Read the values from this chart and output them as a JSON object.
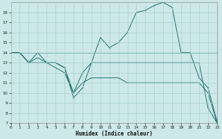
{
  "xlabel": "Humidex (Indice chaleur)",
  "bg_color": "#cce8e8",
  "grid_color": "#aacfcf",
  "line_color": "#1a6b6b",
  "line1_x": [
    0,
    1,
    2,
    3,
    4,
    14,
    18,
    19,
    20,
    21,
    22,
    23
  ],
  "line1_y": [
    14,
    14,
    14,
    14,
    14,
    14,
    14,
    14,
    14,
    14,
    14,
    14
  ],
  "line2_x": [
    0,
    1,
    2,
    3,
    4,
    5,
    6,
    7,
    8,
    9,
    10,
    11,
    12,
    13,
    14,
    15,
    16,
    17,
    18,
    19,
    20,
    21,
    22,
    23
  ],
  "line2_y": [
    14,
    14,
    13,
    14,
    13,
    13,
    12.5,
    9.5,
    10.5,
    13,
    15.5,
    14.5,
    15,
    16,
    18,
    18.2,
    18.7,
    19,
    18.5,
    14,
    14,
    11.5,
    10.5,
    7.2
  ],
  "line3_x": [
    0,
    1,
    2,
    3,
    4,
    5,
    6,
    7,
    8,
    9,
    10,
    11,
    12,
    13,
    14,
    15,
    16,
    17,
    18,
    19,
    20,
    21,
    22,
    23
  ],
  "line3_y": [
    14,
    14,
    13,
    13.5,
    13,
    13,
    12.5,
    10,
    12,
    13,
    13,
    13,
    13,
    13,
    13,
    13,
    13,
    13,
    13,
    13,
    13,
    13,
    8.5,
    7
  ],
  "line4_x": [
    0,
    1,
    2,
    3,
    4,
    5,
    6,
    7,
    8,
    9,
    10,
    11,
    12,
    13,
    14,
    15,
    16,
    17,
    18,
    19,
    20,
    21,
    22,
    23
  ],
  "line4_y": [
    14,
    14,
    13,
    13,
    13,
    12.5,
    12,
    10,
    11,
    11.5,
    11.5,
    11.5,
    11.5,
    11,
    11,
    11,
    11,
    11,
    11,
    11,
    11,
    11,
    10,
    7
  ],
  "xlim": [
    0,
    23
  ],
  "ylim": [
    7,
    19
  ],
  "yticks": [
    7,
    8,
    9,
    10,
    11,
    12,
    13,
    14,
    15,
    16,
    17,
    18
  ],
  "xticks": [
    0,
    1,
    2,
    3,
    4,
    5,
    6,
    7,
    8,
    9,
    10,
    11,
    12,
    13,
    14,
    15,
    16,
    17,
    18,
    19,
    20,
    21,
    22,
    23
  ],
  "lw": 0.7,
  "ms": 2.0,
  "xlabel_fontsize": 5.5,
  "tick_fontsize": 4.5
}
